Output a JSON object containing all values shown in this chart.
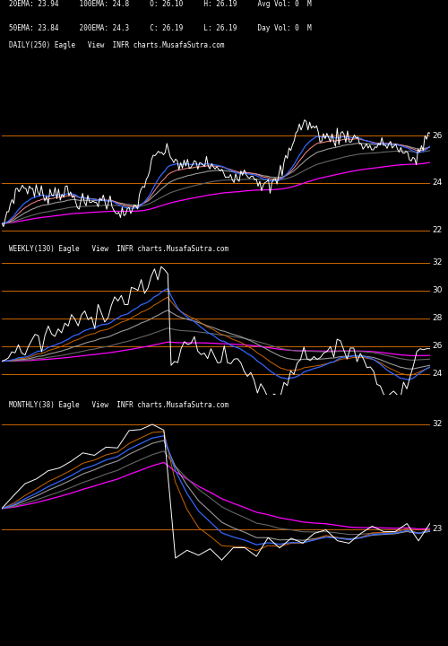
{
  "background_color": "#000000",
  "info_line1": "20EMA: 23.94     100EMA: 24.8     O: 26.10     H: 26.19     Avg Vol: 0  M",
  "info_line2": "50EMA: 23.84     200EMA: 24.3     C: 26.19     L: 26.19     Day Vol: 0  M",
  "subtitle_daily": "DAILY(250) Eagle   View  INFR charts.MusafaSutra.com",
  "subtitle_weekly": "WEEKLY(130) Eagle   View  INFR charts.MusafaSutra.com",
  "subtitle_monthly": "MONTHLY(38) Eagle   View  INFR charts.MusafaSutra.com",
  "orange_color": "#CC6600",
  "white_color": "#FFFFFF",
  "blue_color": "#3366FF",
  "magenta_color": "#FF00FF",
  "gray1_color": "#999999",
  "gray2_color": "#666666",
  "pink_color": "#FF8888",
  "daily_ylim": [
    21.5,
    26.8
  ],
  "daily_hlines": [
    26.0,
    24.0,
    22.0
  ],
  "daily_right_labels": [
    "26",
    "24",
    "22"
  ],
  "weekly_ylim": [
    22.5,
    32.5
  ],
  "weekly_hlines": [
    32.0,
    30.0,
    28.0,
    26.0,
    24.0
  ],
  "weekly_right_labels": [
    "32",
    "30",
    "28",
    "26",
    "24"
  ],
  "monthly_ylim": [
    19.5,
    33.0
  ],
  "monthly_hlines": [
    32.0,
    23.0
  ],
  "monthly_right_labels": [
    "32",
    "23"
  ]
}
